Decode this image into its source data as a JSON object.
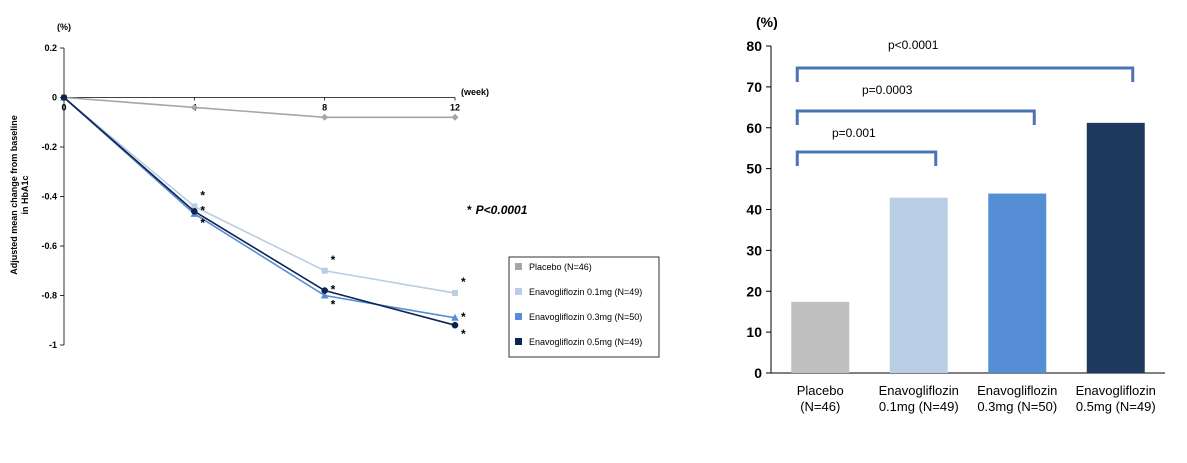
{
  "chart_data": [
    {
      "type": "line",
      "ylabel_lines": [
        "Adjusted mean change from baseline",
        "in HbA1c"
      ],
      "y_unit": "(%)",
      "x_unit": "(week)",
      "x": [
        0,
        4,
        8,
        12
      ],
      "x_tick_labels": [
        "0",
        "4",
        "8",
        "12"
      ],
      "ylim": [
        -1,
        0.2
      ],
      "y_ticks": [
        0.2,
        0,
        -0.2,
        -0.4,
        -0.6,
        -0.8,
        -1
      ],
      "y_tick_labels": [
        "0.2",
        "0",
        "-0.2",
        "-0.4",
        "-0.6",
        "-0.8",
        "-1"
      ],
      "series": [
        {
          "name": "Placebo (N=46)",
          "values": [
            0,
            -0.04,
            -0.08,
            -0.08
          ],
          "color": "#a6a6a6",
          "marker": "diamond"
        },
        {
          "name": "Enavogliflozin  0.1mg (N=49)",
          "values": [
            0,
            -0.44,
            -0.7,
            -0.79
          ],
          "color": "#b9cde5",
          "marker": "square"
        },
        {
          "name": "Enavogliflozin  0.3mg (N=50)",
          "values": [
            0,
            -0.47,
            -0.8,
            -0.89
          ],
          "color": "#558ed5",
          "marker": "triangle"
        },
        {
          "name": "Enavogliflozin  0.5mg (N=49)",
          "values": [
            0,
            -0.46,
            -0.78,
            -0.92
          ],
          "color": "#0f2350",
          "marker": "circle"
        }
      ],
      "significance_marker": "*",
      "annotation": {
        "star": "*",
        "text": "P<0.0001"
      },
      "legend_position": "bottom-right"
    },
    {
      "type": "bar",
      "y_unit": "(%)",
      "categories": [
        [
          "Placebo",
          "(N=46)"
        ],
        [
          "Enavogliflozin",
          "0.1mg (N=49)"
        ],
        [
          "Enavogliflozin",
          "0.3mg (N=50)"
        ],
        [
          "Enavogliflozin",
          "0.5mg (N=49)"
        ]
      ],
      "values": [
        17.4,
        42.9,
        43.9,
        61.2
      ],
      "colors": [
        "#bfbfbf",
        "#b9cde5",
        "#558ed5",
        "#1f3a5f"
      ],
      "ylim": [
        0,
        80
      ],
      "y_ticks": [
        0,
        10,
        20,
        30,
        40,
        50,
        60,
        70,
        80
      ],
      "comparisons": [
        {
          "label": "p=0.001",
          "from": 0,
          "to": 1
        },
        {
          "label": "p=0.0003",
          "from": 0,
          "to": 2
        },
        {
          "label": "p<0.0001",
          "from": 0,
          "to": 3
        }
      ]
    }
  ]
}
